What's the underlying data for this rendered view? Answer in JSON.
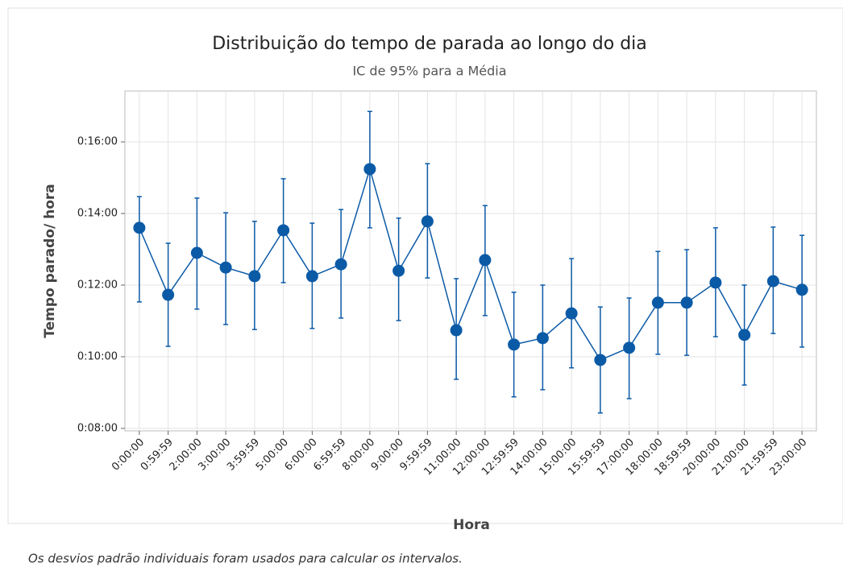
{
  "chart_data": {
    "type": "interval",
    "title": "Distribuição do tempo de parada ao longo do dia",
    "subtitle": "IC de 95% para a Média",
    "x_label": "Hora",
    "y_label": "Tempo parado/ hora",
    "footnote": "Os desvios padrão individuais foram usados para calcular os intervalos.",
    "categories": [
      "0:00:00",
      "0:59:59",
      "2:00:00",
      "3:00:00",
      "3:59:59",
      "5:00:00",
      "6:00:00",
      "6:59:59",
      "8:00:00",
      "9:00:00",
      "9:59:59",
      "11:00:00",
      "12:00:00",
      "12:59:59",
      "14:00:00",
      "15:00:00",
      "15:59:59",
      "17:00:00",
      "18:00:00",
      "18:59:59",
      "20:00:00",
      "21:00:00",
      "21:59:59",
      "23:00:00"
    ],
    "series": [
      {
        "color": "#0b5aa6",
        "values": [
          13.6,
          11.73,
          12.9,
          12.49,
          12.25,
          13.53,
          12.25,
          12.58,
          15.24,
          12.4,
          13.78,
          10.74,
          12.7,
          10.34,
          10.52,
          11.21,
          9.91,
          10.25,
          11.51,
          11.51,
          12.07,
          10.61,
          12.11,
          11.87
        ],
        "lower": [
          11.53,
          10.29,
          11.33,
          10.9,
          10.76,
          12.07,
          10.79,
          11.08,
          13.6,
          11.01,
          12.2,
          9.37,
          11.15,
          8.88,
          9.08,
          9.69,
          8.43,
          8.83,
          10.07,
          10.04,
          10.56,
          9.21,
          10.65,
          10.27
        ],
        "upper": [
          14.47,
          13.17,
          14.43,
          14.02,
          13.78,
          14.97,
          13.73,
          14.11,
          16.85,
          13.87,
          15.39,
          12.18,
          14.22,
          11.8,
          12.0,
          12.74,
          11.39,
          11.64,
          12.94,
          12.99,
          13.6,
          12.0,
          13.62,
          13.39
        ]
      }
    ],
    "ylim": [
      7.93,
      17.42
    ],
    "yticks": [
      {
        "value": 8,
        "label": "0:08:00"
      },
      {
        "value": 10,
        "label": "0:10:00"
      },
      {
        "value": 12,
        "label": "0:12:00"
      },
      {
        "value": 14,
        "label": "0:14:00"
      },
      {
        "value": 16,
        "label": "0:16:00"
      }
    ],
    "grid": true
  }
}
